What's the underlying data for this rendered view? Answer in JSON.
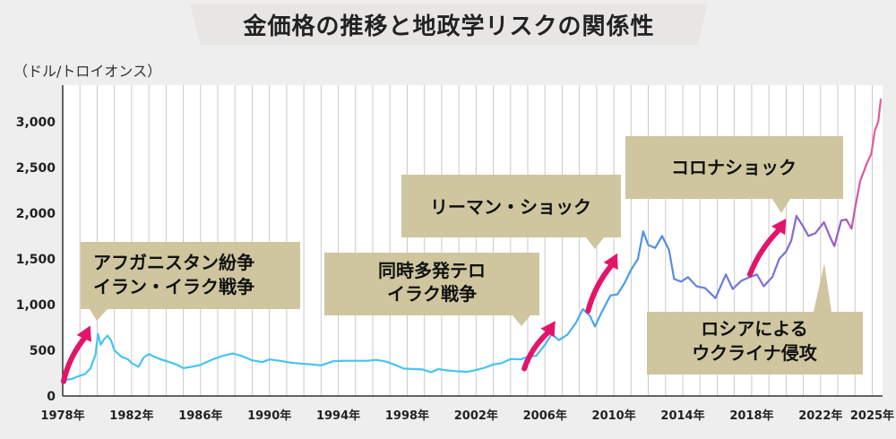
{
  "title": "金価格の推移と地政学リスクの関係性",
  "unit": "（ドル/トロイオンス）",
  "colors": {
    "background": "#eeeeee",
    "plot": "#ffffff",
    "gridline": "#c9c9c9",
    "line_early": "#45c4f0",
    "line_mid": "#4f92e8",
    "line_late": "#9b59c9",
    "line_latest": "#e45a9a",
    "callout": "#cfc69f",
    "arrow": "#e2156b"
  },
  "chart_data": {
    "type": "line",
    "title": "金価格の推移と地政学リスクの関係性",
    "ylabel": "（ドル/トロイオンス）",
    "xlabel": "",
    "xlim": [
      1978,
      2025.6
    ],
    "ylim": [
      0,
      3400
    ],
    "grid": true,
    "yticks": [
      0,
      500,
      1000,
      1500,
      2000,
      2500,
      3000
    ],
    "ytick_labels": [
      "0",
      "500",
      "1,000",
      "1,500",
      "2,000",
      "2,500",
      "3,000"
    ],
    "xticks": [
      1978,
      1982,
      1986,
      1990,
      1994,
      1998,
      2002,
      2006,
      2010,
      2014,
      2018,
      2022,
      2025
    ],
    "xtick_labels": [
      "1978年",
      "1982年",
      "1986年",
      "1990年",
      "1994年",
      "1998年",
      "2002年",
      "2006年",
      "2010年",
      "2014年",
      "2018年",
      "2022年",
      "2025年"
    ],
    "series": [
      {
        "name": "金価格",
        "points": [
          [
            1978.0,
            172
          ],
          [
            1978.5,
            185
          ],
          [
            1978.9,
            215
          ],
          [
            1979.3,
            240
          ],
          [
            1979.6,
            300
          ],
          [
            1979.9,
            450
          ],
          [
            1980.05,
            680
          ],
          [
            1980.2,
            560
          ],
          [
            1980.4,
            620
          ],
          [
            1980.6,
            660
          ],
          [
            1980.8,
            610
          ],
          [
            1981.0,
            500
          ],
          [
            1981.4,
            430
          ],
          [
            1981.8,
            400
          ],
          [
            1982.0,
            360
          ],
          [
            1982.4,
            320
          ],
          [
            1982.7,
            420
          ],
          [
            1983.0,
            460
          ],
          [
            1983.3,
            430
          ],
          [
            1983.7,
            400
          ],
          [
            1984.2,
            370
          ],
          [
            1984.6,
            345
          ],
          [
            1985.0,
            305
          ],
          [
            1985.5,
            320
          ],
          [
            1986.0,
            340
          ],
          [
            1986.7,
            400
          ],
          [
            1987.3,
            440
          ],
          [
            1987.9,
            465
          ],
          [
            1988.5,
            430
          ],
          [
            1989.0,
            390
          ],
          [
            1989.6,
            370
          ],
          [
            1990.0,
            400
          ],
          [
            1990.6,
            385
          ],
          [
            1991.2,
            365
          ],
          [
            1991.8,
            355
          ],
          [
            1992.5,
            345
          ],
          [
            1993.0,
            335
          ],
          [
            1993.7,
            380
          ],
          [
            1994.3,
            385
          ],
          [
            1995.0,
            385
          ],
          [
            1995.7,
            385
          ],
          [
            1996.2,
            395
          ],
          [
            1996.8,
            375
          ],
          [
            1997.3,
            340
          ],
          [
            1997.8,
            300
          ],
          [
            1998.3,
            295
          ],
          [
            1998.9,
            290
          ],
          [
            1999.4,
            260
          ],
          [
            1999.8,
            295
          ],
          [
            2000.3,
            280
          ],
          [
            2000.9,
            270
          ],
          [
            2001.5,
            265
          ],
          [
            2001.9,
            280
          ],
          [
            2002.5,
            310
          ],
          [
            2003.0,
            345
          ],
          [
            2003.5,
            360
          ],
          [
            2004.0,
            405
          ],
          [
            2004.6,
            400
          ],
          [
            2005.0,
            430
          ],
          [
            2005.5,
            440
          ],
          [
            2006.0,
            560
          ],
          [
            2006.4,
            680
          ],
          [
            2006.8,
            610
          ],
          [
            2007.3,
            670
          ],
          [
            2007.8,
            800
          ],
          [
            2008.2,
            950
          ],
          [
            2008.6,
            880
          ],
          [
            2008.9,
            760
          ],
          [
            2009.3,
            920
          ],
          [
            2009.8,
            1100
          ],
          [
            2010.2,
            1110
          ],
          [
            2010.6,
            1230
          ],
          [
            2011.0,
            1380
          ],
          [
            2011.4,
            1500
          ],
          [
            2011.7,
            1800
          ],
          [
            2012.0,
            1650
          ],
          [
            2012.4,
            1620
          ],
          [
            2012.8,
            1750
          ],
          [
            2013.2,
            1600
          ],
          [
            2013.5,
            1280
          ],
          [
            2013.9,
            1250
          ],
          [
            2014.3,
            1300
          ],
          [
            2014.8,
            1200
          ],
          [
            2015.3,
            1180
          ],
          [
            2015.9,
            1070
          ],
          [
            2016.5,
            1330
          ],
          [
            2016.9,
            1170
          ],
          [
            2017.4,
            1260
          ],
          [
            2017.9,
            1300
          ],
          [
            2018.3,
            1330
          ],
          [
            2018.7,
            1200
          ],
          [
            2019.2,
            1300
          ],
          [
            2019.6,
            1500
          ],
          [
            2020.0,
            1580
          ],
          [
            2020.3,
            1700
          ],
          [
            2020.6,
            1970
          ],
          [
            2021.0,
            1850
          ],
          [
            2021.3,
            1750
          ],
          [
            2021.7,
            1780
          ],
          [
            2022.2,
            1900
          ],
          [
            2022.6,
            1720
          ],
          [
            2022.8,
            1640
          ],
          [
            2023.2,
            1920
          ],
          [
            2023.5,
            1930
          ],
          [
            2023.8,
            1830
          ],
          [
            2024.0,
            2050
          ],
          [
            2024.3,
            2350
          ],
          [
            2024.7,
            2550
          ],
          [
            2024.95,
            2650
          ],
          [
            2025.15,
            2900
          ],
          [
            2025.35,
            3000
          ],
          [
            2025.5,
            3250
          ]
        ]
      }
    ],
    "annotations": [
      {
        "lines": [
          "アフガニスタン紛争",
          "イラン・イラク戦争"
        ]
      },
      {
        "lines": [
          "同時多発テロ",
          "イラク戦争"
        ]
      },
      {
        "lines": [
          "リーマン・ショック"
        ]
      },
      {
        "lines": [
          "コロナショック"
        ]
      },
      {
        "lines": [
          "ロシアによる",
          "ウクライナ侵攻"
        ]
      }
    ]
  }
}
